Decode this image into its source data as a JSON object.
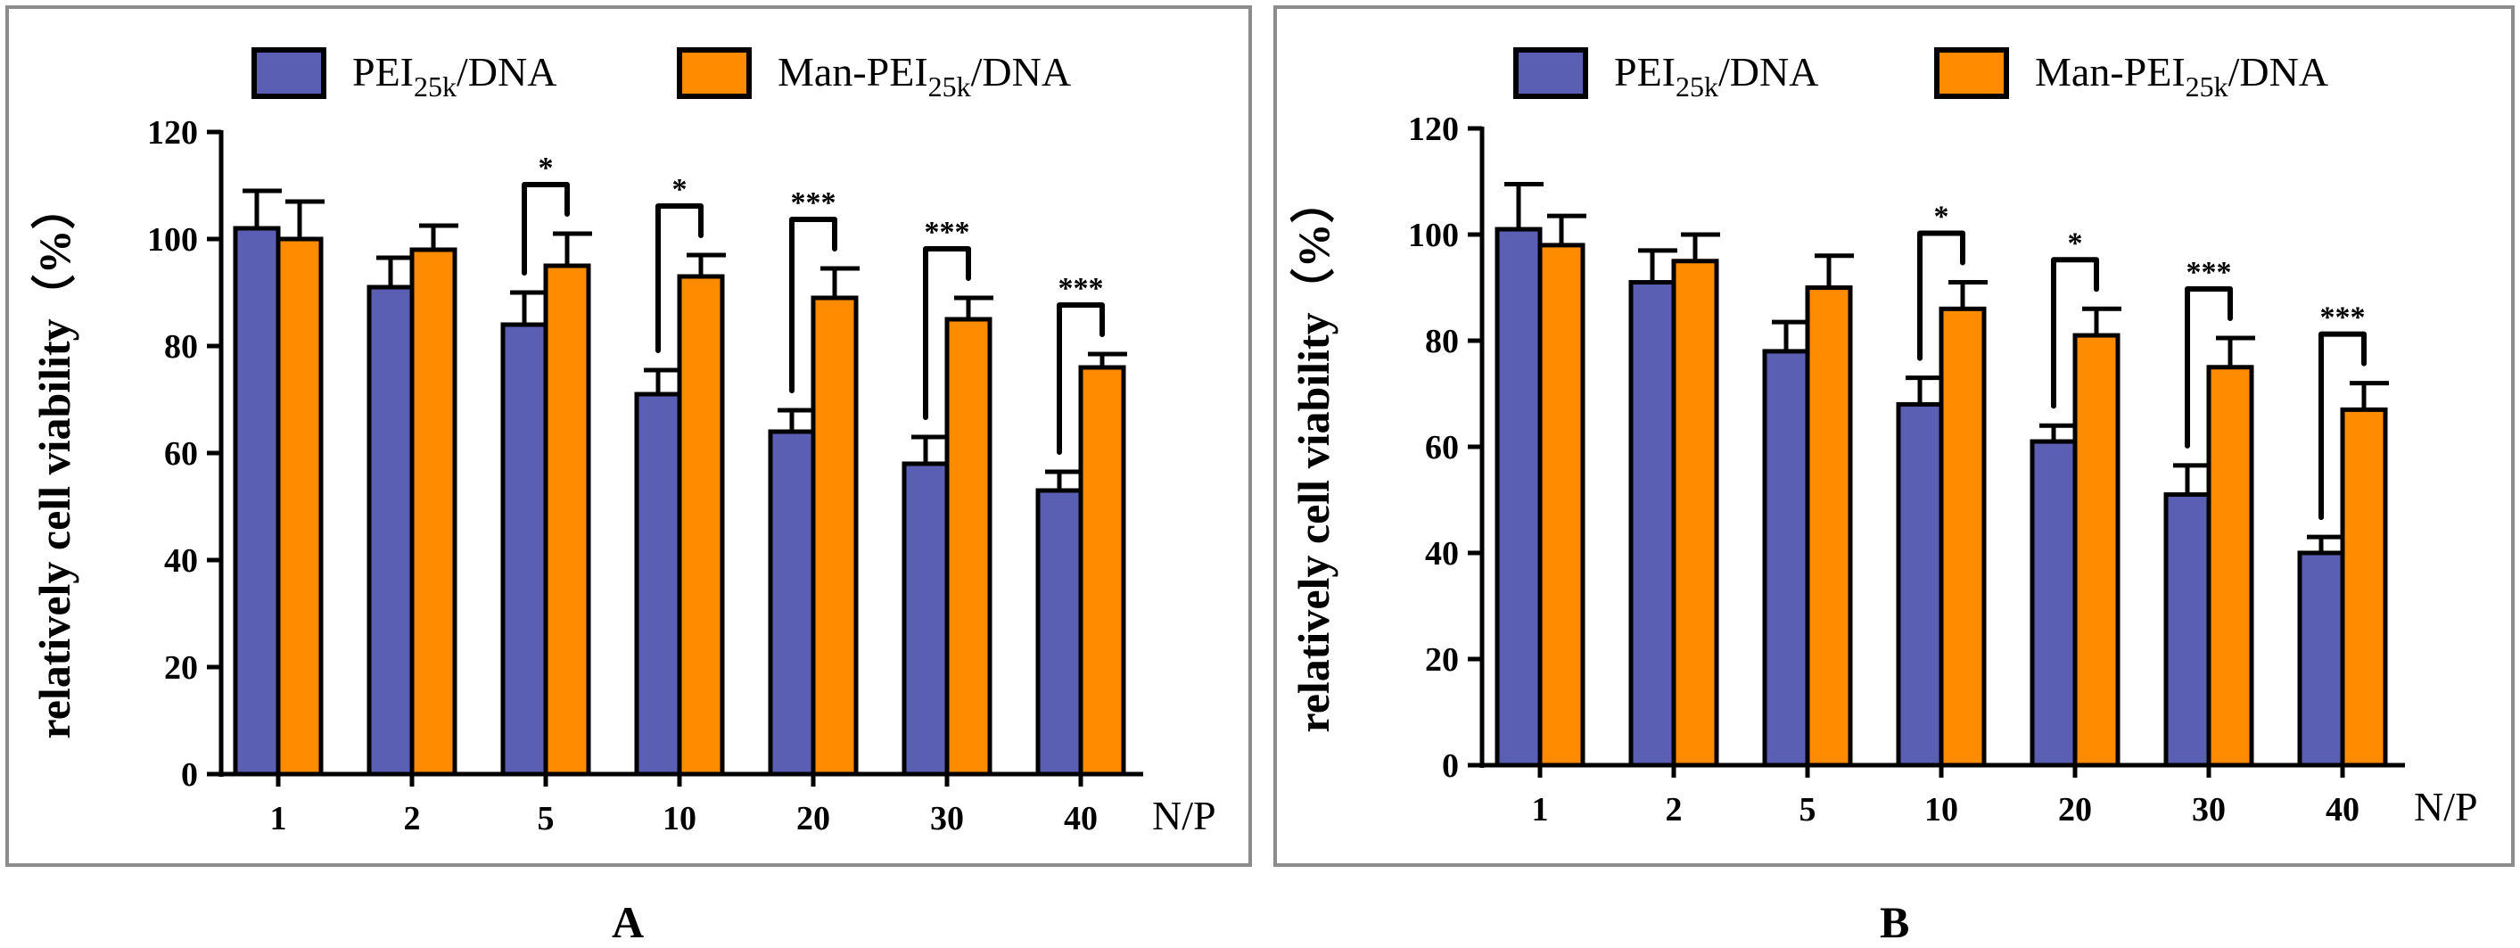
{
  "colors": {
    "series1": "#5b5fb4",
    "series2": "#ff8c00",
    "axis": "#000000",
    "frame": "#8c8c8c"
  },
  "chart_data": [
    {
      "type": "bar",
      "panel_label": "A",
      "ylabel": "relatively cell viability（%）",
      "xlabel": "N/P",
      "categories": [
        "1",
        "2",
        "5",
        "10",
        "20",
        "30",
        "40"
      ],
      "ylim": [
        0,
        120
      ],
      "yticks": [
        "0",
        "20",
        "40",
        "60",
        "80",
        "100",
        "120"
      ],
      "grid": false,
      "legend_position": "top",
      "series": [
        {
          "name_main": "PEI",
          "name_sub": "25k",
          "name_rest": "/DNA",
          "values": [
            102,
            91,
            84,
            71,
            64,
            58,
            53
          ],
          "errors": [
            7,
            5.5,
            6,
            4.5,
            4,
            5,
            3.5
          ]
        },
        {
          "name_main": "Man-PEI",
          "name_sub": "25k",
          "name_rest": "/DNA",
          "values": [
            100,
            98,
            95,
            93,
            89,
            85,
            76
          ],
          "errors": [
            7,
            4.5,
            6,
            4,
            5.5,
            4,
            2.5
          ]
        }
      ],
      "significance": [
        {
          "category": "5",
          "label": "*"
        },
        {
          "category": "10",
          "label": "*"
        },
        {
          "category": "20",
          "label": "***"
        },
        {
          "category": "30",
          "label": "***"
        },
        {
          "category": "40",
          "label": "***"
        }
      ]
    },
    {
      "type": "bar",
      "panel_label": "B",
      "ylabel": "relatively cell viability（%）",
      "xlabel": "N/P",
      "categories": [
        "1",
        "2",
        "5",
        "10",
        "20",
        "30",
        "40"
      ],
      "ylim": [
        0,
        120
      ],
      "yticks": [
        "0",
        "20",
        "40",
        "60",
        "80",
        "100",
        "120"
      ],
      "grid": false,
      "legend_position": "top",
      "series": [
        {
          "name_main": "PEI",
          "name_sub": "25k",
          "name_rest": "/DNA",
          "values": [
            101,
            91,
            78,
            68,
            61,
            51,
            40
          ],
          "errors": [
            8.5,
            6,
            5.5,
            5,
            3,
            5.5,
            3
          ]
        },
        {
          "name_main": "Man-PEI",
          "name_sub": "25k",
          "name_rest": "/DNA",
          "values": [
            98,
            95,
            90,
            86,
            81,
            75,
            67
          ],
          "errors": [
            5.5,
            5,
            6,
            5,
            5,
            5.5,
            5
          ]
        }
      ],
      "significance": [
        {
          "category": "10",
          "label": "*"
        },
        {
          "category": "20",
          "label": "*"
        },
        {
          "category": "30",
          "label": "***"
        },
        {
          "category": "40",
          "label": "***"
        }
      ]
    }
  ]
}
